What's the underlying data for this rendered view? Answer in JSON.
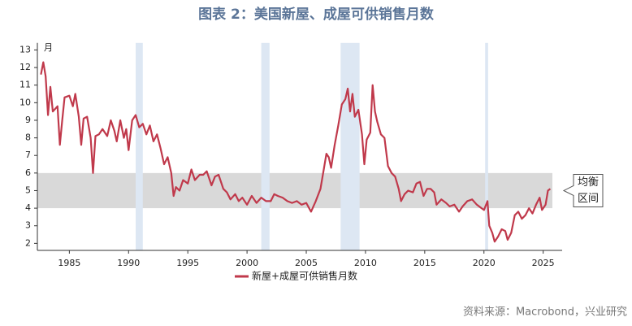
{
  "chart_data": {
    "type": "line",
    "title": "图表 2：美国新屋、成屋可供销售月数",
    "y_label": "月",
    "source": "资料来源：Macrobond，兴业研究",
    "equilibrium_band": [
      4,
      6
    ],
    "band_label_lines": [
      "均衡",
      "区间"
    ],
    "recessions": [
      [
        1990.6,
        1991.2
      ],
      [
        2001.2,
        2001.9
      ],
      [
        2007.9,
        2009.5
      ],
      [
        2020.1,
        2020.35
      ]
    ],
    "xlim": [
      1982.3,
      2026.6
    ],
    "xticks": [
      1985,
      1990,
      1995,
      2000,
      2005,
      2010,
      2015,
      2020,
      2025
    ],
    "ylim": [
      1.6,
      13.4
    ],
    "yticks": [
      2,
      3,
      4,
      5,
      6,
      7,
      8,
      9,
      10,
      11,
      12,
      13
    ],
    "series": [
      {
        "name": "新屋+成屋可供销售月数",
        "color": "#c0394b",
        "x": [
          1982.6,
          1982.8,
          1983.0,
          1983.2,
          1983.4,
          1983.6,
          1984.0,
          1984.2,
          1984.4,
          1984.6,
          1985.0,
          1985.3,
          1985.5,
          1985.8,
          1986.0,
          1986.2,
          1986.5,
          1986.8,
          1987.0,
          1987.2,
          1987.5,
          1987.8,
          1988.2,
          1988.5,
          1988.8,
          1989.0,
          1989.3,
          1989.6,
          1989.8,
          1990.0,
          1990.3,
          1990.6,
          1990.9,
          1991.2,
          1991.5,
          1991.8,
          1992.1,
          1992.4,
          1992.7,
          1993.0,
          1993.3,
          1993.6,
          1993.8,
          1994.0,
          1994.3,
          1994.6,
          1995.0,
          1995.3,
          1995.6,
          1996.0,
          1996.3,
          1996.6,
          1997.0,
          1997.3,
          1997.6,
          1998.0,
          1998.3,
          1998.6,
          1999.0,
          1999.3,
          1999.6,
          2000.0,
          2000.4,
          2000.8,
          2001.2,
          2001.6,
          2002.0,
          2002.3,
          2002.6,
          2003.0,
          2003.4,
          2003.8,
          2004.2,
          2004.6,
          2005.0,
          2005.4,
          2005.8,
          2006.2,
          2006.5,
          2006.7,
          2006.9,
          2007.1,
          2007.4,
          2007.7,
          2008.0,
          2008.3,
          2008.5,
          2008.7,
          2008.9,
          2009.1,
          2009.4,
          2009.7,
          2009.9,
          2010.1,
          2010.4,
          2010.6,
          2010.8,
          2011.0,
          2011.3,
          2011.6,
          2011.9,
          2012.2,
          2012.5,
          2012.8,
          2013.0,
          2013.3,
          2013.6,
          2014.0,
          2014.3,
          2014.6,
          2014.9,
          2015.2,
          2015.5,
          2015.8,
          2016.0,
          2016.4,
          2016.8,
          2017.1,
          2017.5,
          2017.9,
          2018.2,
          2018.6,
          2019.0,
          2019.4,
          2019.8,
          2020.0,
          2020.3,
          2020.45,
          2020.7,
          2020.9,
          2021.2,
          2021.5,
          2021.8,
          2022.0,
          2022.3,
          2022.6,
          2022.9,
          2023.2,
          2023.5,
          2023.8,
          2024.1,
          2024.4,
          2024.7,
          2024.9,
          2025.2,
          2025.4,
          2025.6
        ],
        "values": [
          11.6,
          12.3,
          11.5,
          9.3,
          10.9,
          9.5,
          9.8,
          7.6,
          9.0,
          10.3,
          10.4,
          9.8,
          10.5,
          9.2,
          7.6,
          9.1,
          9.2,
          8.0,
          6.0,
          8.1,
          8.2,
          8.5,
          8.1,
          9.0,
          8.4,
          7.8,
          9.0,
          8.0,
          8.5,
          7.3,
          9.0,
          9.3,
          8.6,
          8.8,
          8.2,
          8.7,
          7.8,
          8.2,
          7.4,
          6.5,
          6.9,
          6.0,
          4.7,
          5.2,
          5.0,
          5.6,
          5.4,
          6.2,
          5.6,
          5.9,
          5.9,
          6.1,
          5.3,
          5.8,
          5.9,
          5.1,
          4.9,
          4.5,
          4.8,
          4.4,
          4.6,
          4.2,
          4.7,
          4.3,
          4.6,
          4.4,
          4.4,
          4.8,
          4.7,
          4.6,
          4.4,
          4.3,
          4.4,
          4.2,
          4.3,
          3.8,
          4.4,
          5.1,
          6.3,
          7.1,
          6.9,
          6.3,
          7.6,
          8.7,
          9.9,
          10.2,
          10.8,
          9.5,
          10.5,
          9.2,
          9.6,
          8.2,
          6.5,
          7.9,
          8.3,
          11.0,
          9.5,
          8.9,
          8.2,
          8.0,
          6.4,
          6.0,
          5.8,
          5.1,
          4.4,
          4.8,
          5.0,
          4.9,
          5.4,
          5.5,
          4.7,
          5.1,
          5.1,
          4.9,
          4.2,
          4.5,
          4.3,
          4.1,
          4.2,
          3.8,
          4.1,
          4.4,
          4.5,
          4.2,
          4.0,
          3.9,
          4.4,
          3.0,
          2.6,
          2.1,
          2.4,
          2.8,
          2.7,
          2.2,
          2.6,
          3.6,
          3.8,
          3.4,
          3.6,
          4.0,
          3.7,
          4.2,
          4.6,
          3.9,
          4.2,
          5.0,
          5.1
        ]
      }
    ]
  }
}
